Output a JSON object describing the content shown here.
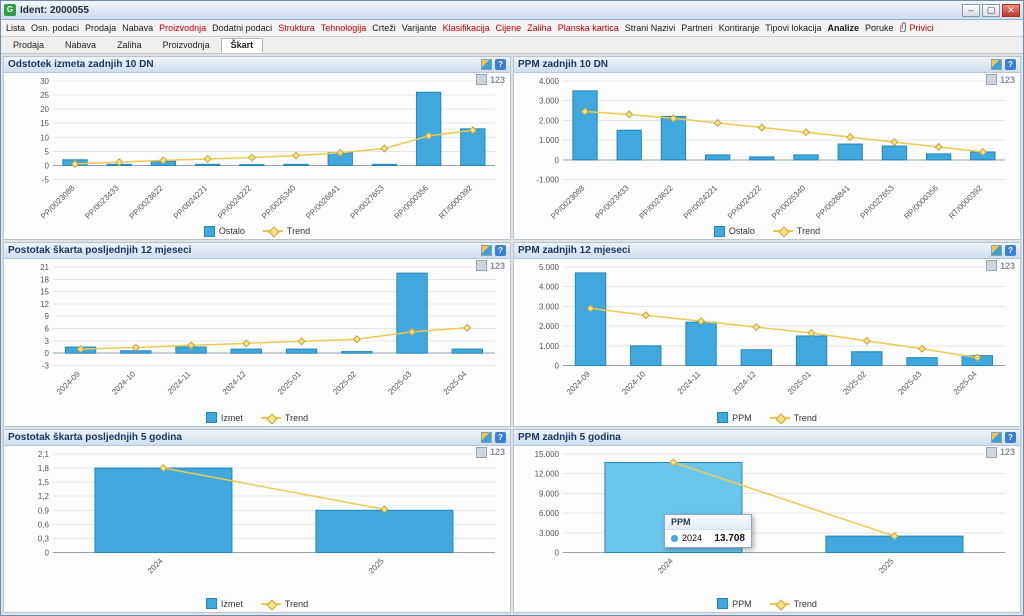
{
  "window": {
    "title": "Ident: 2000055",
    "app_initial": "G",
    "controls": {
      "minimize": "–",
      "maximize": "▢",
      "close": "✕"
    }
  },
  "menu": {
    "items": [
      {
        "label": "Lista",
        "red": false
      },
      {
        "label": "Osn. podaci",
        "red": false
      },
      {
        "label": "Prodaja",
        "red": false
      },
      {
        "label": "Nabava",
        "red": false
      },
      {
        "label": "Proizvodnja",
        "red": true
      },
      {
        "label": "Dodatni podaci",
        "red": false
      },
      {
        "label": "Struktura",
        "red": true
      },
      {
        "label": "Tehnologija",
        "red": true
      },
      {
        "label": "Crteži",
        "red": false
      },
      {
        "label": "Varijante",
        "red": false
      },
      {
        "label": "Klasifikacija",
        "red": true
      },
      {
        "label": "Cijene",
        "red": true
      },
      {
        "label": "Zaliha",
        "red": true
      },
      {
        "label": "Planska kartica",
        "red": true
      },
      {
        "label": "Strani Nazivi",
        "red": false
      },
      {
        "label": "Partneri",
        "red": false
      },
      {
        "label": "Kontiranje",
        "red": false
      },
      {
        "label": "Tipovi lokacija",
        "red": false
      },
      {
        "label": "Analize",
        "red": false,
        "active": true
      },
      {
        "label": "Poruke",
        "red": false
      },
      {
        "label": "Privici",
        "red": true,
        "icon": "paperclip"
      }
    ]
  },
  "tabs": {
    "items": [
      {
        "label": "Prodaja"
      },
      {
        "label": "Nabava"
      },
      {
        "label": "Zaliha"
      },
      {
        "label": "Proizvodnja"
      },
      {
        "label": "Škart",
        "active": true
      }
    ]
  },
  "panel_meta": {
    "values_label": "123",
    "help_label": "?"
  },
  "colors": {
    "bar": "#41a8dd",
    "bar_border": "#2288bb",
    "bar_highlight": "#6cc6ec",
    "trend_line": "#edc94f",
    "trend_fill": "#f6e289",
    "trend_border": "#c9a53a",
    "grid": "#e6e6e6",
    "axis": "#97a1ab",
    "tick_text": "#555555"
  },
  "chart_data": [
    {
      "type": "bar",
      "title": "Odstotek izmeta zadnjih 10 DN",
      "categories": [
        "PP/0023088",
        "PP/0023433",
        "PP/0023622",
        "PP/0024221",
        "PP/0024222",
        "PP/0025340",
        "PP/0026841",
        "PP/0027653",
        "RP/0000356",
        "RT/0000392"
      ],
      "series": [
        {
          "name": "Ostalo",
          "values": [
            2,
            0.4,
            1.5,
            0.4,
            0.3,
            0.4,
            4.5,
            0.4,
            26,
            13
          ]
        }
      ],
      "trend": {
        "name": "Trend",
        "values": [
          0.5,
          1.2,
          1.8,
          2.3,
          2.8,
          3.5,
          4.5,
          6,
          10.5,
          12.5
        ]
      },
      "ylim": [
        -5,
        30
      ],
      "yticks": [
        -5,
        0,
        5,
        10,
        15,
        20,
        25,
        30
      ],
      "ytick_labels": [
        "-5",
        "0",
        "5",
        "10",
        "15",
        "20",
        "25",
        "30"
      ],
      "legend": [
        "Ostalo",
        "Trend"
      ],
      "legend_position": "bottom",
      "grid": true
    },
    {
      "type": "bar",
      "title": "PPM zadnjih 10 DN",
      "categories": [
        "PP/0023088",
        "PP/0023433",
        "PP/0023622",
        "PP/0024221",
        "PP/0024222",
        "PP/0025340",
        "PP/0026841",
        "PP/0027653",
        "RP/0000356",
        "RT/0000392"
      ],
      "series": [
        {
          "name": "Ostalo",
          "values": [
            3500,
            1500,
            2200,
            250,
            150,
            250,
            800,
            700,
            300,
            400
          ]
        }
      ],
      "trend": {
        "name": "Trend",
        "values": [
          2450,
          2300,
          2100,
          1870,
          1640,
          1400,
          1150,
          900,
          650,
          400
        ]
      },
      "ylim": [
        -1000,
        4000
      ],
      "yticks": [
        -1000,
        0,
        1000,
        2000,
        3000,
        4000
      ],
      "ytick_labels": [
        "-1.000",
        "0",
        "1.000",
        "2.000",
        "3.000",
        "4.000"
      ],
      "legend": [
        "Ostalo",
        "Trend"
      ],
      "legend_position": "bottom",
      "grid": true
    },
    {
      "type": "bar",
      "title": "Postotak škarta posljednjih 12 mjeseci",
      "categories": [
        "2024-09",
        "2024-10",
        "2024-11",
        "2024-12",
        "2025-01",
        "2025-02",
        "2025-03",
        "2025-04"
      ],
      "series": [
        {
          "name": "Izmet",
          "values": [
            1.5,
            0.6,
            1.5,
            1.0,
            1.0,
            0.4,
            19.5,
            1.0
          ]
        }
      ],
      "trend": {
        "name": "Trend",
        "values": [
          1.0,
          1.4,
          1.9,
          2.4,
          2.9,
          3.4,
          5.2,
          6.2
        ]
      },
      "ylim": [
        -3,
        21
      ],
      "yticks": [
        -3,
        0,
        3,
        6,
        9,
        12,
        15,
        18,
        21
      ],
      "ytick_labels": [
        "-3",
        "0",
        "3",
        "6",
        "9",
        "12",
        "15",
        "18",
        "21"
      ],
      "legend": [
        "Izmet",
        "Trend"
      ],
      "legend_position": "bottom",
      "grid": true
    },
    {
      "type": "bar",
      "title": "PPM zadnjih 12 mjeseci",
      "categories": [
        "2024-09",
        "2024-10",
        "2024-11",
        "2024-12",
        "2025-01",
        "2025-02",
        "2025-03",
        "2025-04"
      ],
      "series": [
        {
          "name": "PPM",
          "values": [
            4700,
            1000,
            2200,
            800,
            1500,
            700,
            400,
            500
          ]
        }
      ],
      "trend": {
        "name": "Trend",
        "values": [
          2900,
          2550,
          2250,
          1950,
          1650,
          1250,
          850,
          400
        ]
      },
      "ylim": [
        0,
        5000
      ],
      "yticks": [
        0,
        1000,
        2000,
        3000,
        4000,
        5000
      ],
      "ytick_labels": [
        "0",
        "1.000",
        "2.000",
        "3.000",
        "4.000",
        "5.000"
      ],
      "legend": [
        "PPM",
        "Trend"
      ],
      "legend_position": "bottom",
      "grid": true
    },
    {
      "type": "bar",
      "title": "Postotak škarta posljednjih 5 godina",
      "categories": [
        "2024",
        "2025"
      ],
      "series": [
        {
          "name": "Izmet",
          "values": [
            1.8,
            0.9
          ]
        }
      ],
      "trend": {
        "name": "Trend",
        "values": [
          1.8,
          0.92
        ]
      },
      "ylim": [
        0,
        2.1
      ],
      "yticks": [
        0,
        0.3,
        0.6,
        0.9,
        1.2,
        1.5,
        1.8,
        2.1
      ],
      "ytick_labels": [
        "0",
        "0,3",
        "0,6",
        "0,9",
        "1,2",
        "1,5",
        "1,8",
        "2,1"
      ],
      "legend": [
        "Izmet",
        "Trend"
      ],
      "legend_position": "bottom",
      "grid": true
    },
    {
      "type": "bar",
      "title": "PPM zadnjih 5 godina",
      "categories": [
        "2024",
        "2025"
      ],
      "series": [
        {
          "name": "PPM",
          "values": [
            13708,
            2500
          ]
        }
      ],
      "trend": {
        "name": "Trend",
        "values": [
          13708,
          2500
        ]
      },
      "ylim": [
        0,
        15000
      ],
      "yticks": [
        0,
        3000,
        6000,
        9000,
        12000,
        15000
      ],
      "ytick_labels": [
        "0",
        "3.000",
        "6.000",
        "9.000",
        "12.000",
        "15.000"
      ],
      "legend": [
        "PPM",
        "Trend"
      ],
      "legend_position": "bottom",
      "grid": true,
      "highlight_index": 0,
      "tooltip": {
        "title": "PPM",
        "series": "2024",
        "value": "13.708"
      }
    }
  ]
}
